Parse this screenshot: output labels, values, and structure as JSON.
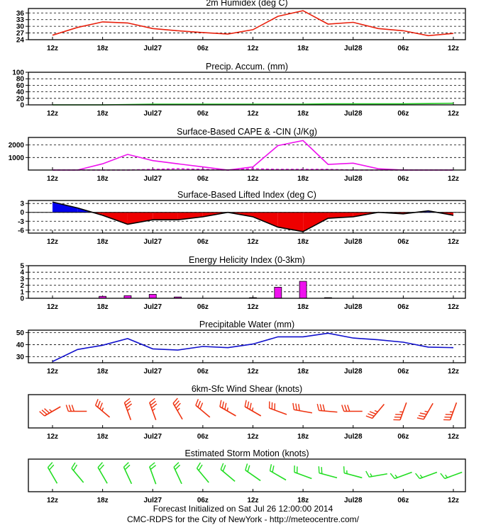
{
  "footer": {
    "line1": "Forecast Initialized on Sat Jul 26 12:00:00 2014",
    "line2": "CMC-RDPS for the City of NewYork - http://meteocentre.com/"
  },
  "x_labels": [
    "12z",
    "18z",
    "Jul27",
    "06z",
    "12z",
    "18z",
    "Jul28",
    "06z",
    "12z"
  ],
  "colors": {
    "humidex": "#e8200c",
    "precip": "#22cc22",
    "cape": "#ee11ee",
    "li_neg": "#ee0000",
    "li_pos": "#0000ee",
    "ehi": "#ee11ee",
    "pw": "#1010cc",
    "shear": "#ee3311",
    "storm": "#22dd22"
  },
  "chart_data": [
    {
      "type": "line",
      "title": "2m Humidex (deg C)",
      "yticks": [
        24,
        27,
        30,
        33,
        36
      ],
      "ylim": [
        24,
        38
      ],
      "values": [
        26,
        29.5,
        32,
        31.5,
        29,
        28,
        27.2,
        26.5,
        28.5,
        34.5,
        37,
        31,
        31.8,
        29,
        28,
        25.8,
        26.8
      ]
    },
    {
      "type": "line",
      "title": "Precip. Accum. (mm)",
      "yticks": [
        0,
        20,
        40,
        60,
        80,
        100
      ],
      "ylim": [
        0,
        100
      ],
      "values": [
        0,
        0,
        0,
        1,
        2,
        2,
        2,
        2,
        2,
        2,
        2,
        3,
        3,
        3,
        3,
        4,
        5
      ]
    },
    {
      "type": "line",
      "title": "Surface-Based CAPE & -CIN (J/Kg)",
      "yticks": [
        1000,
        2000
      ],
      "ylim": [
        0,
        2600
      ],
      "series": [
        {
          "values": [
            0,
            0,
            500,
            1250,
            750,
            500,
            250,
            0,
            250,
            1950,
            2350,
            450,
            550,
            100,
            0,
            0,
            0
          ]
        },
        {
          "values": [
            0,
            0,
            0,
            0,
            50,
            100,
            50,
            0,
            100,
            50,
            50,
            50,
            0,
            0,
            0,
            0,
            0
          ]
        }
      ]
    },
    {
      "type": "area",
      "title": "Surface-Based Lifted Index (deg C)",
      "yticks": [
        -6,
        -3,
        0,
        3
      ],
      "ylim": [
        -7,
        4
      ],
      "values": [
        3.5,
        1.5,
        -1,
        -4,
        -2.5,
        -2.5,
        -1.5,
        0,
        -1.5,
        -5,
        -6.5,
        -2,
        -1.5,
        0,
        -0.5,
        0.5,
        -1
      ]
    },
    {
      "type": "bar",
      "title": "Energy Helicity Index (0-3km)",
      "yticks": [
        0,
        1,
        2,
        3,
        4,
        5
      ],
      "ylim": [
        0,
        5
      ],
      "values": [
        0,
        0,
        0.3,
        0.4,
        0.6,
        0.2,
        0,
        0,
        0.1,
        1.7,
        2.6,
        0.1,
        0,
        0,
        0,
        0,
        0
      ]
    },
    {
      "type": "line",
      "title": "Precipitable Water (mm)",
      "yticks": [
        30,
        40,
        50
      ],
      "ylim": [
        25,
        52
      ],
      "values": [
        26,
        36,
        39.5,
        45,
        36.5,
        35.5,
        38.5,
        37.5,
        40.5,
        46.5,
        46.5,
        49.5,
        45.5,
        44,
        42,
        38,
        37.5
      ]
    },
    {
      "type": "scatter",
      "title": "6km-Sfc Wind Shear    (knots)",
      "barbs": [
        {
          "dir": 240,
          "speed": 35
        },
        {
          "dir": 270,
          "speed": 30
        },
        {
          "dir": 310,
          "speed": 35
        },
        {
          "dir": 340,
          "speed": 35
        },
        {
          "dir": 340,
          "speed": 35
        },
        {
          "dir": 330,
          "speed": 35
        },
        {
          "dir": 310,
          "speed": 30
        },
        {
          "dir": 300,
          "speed": 35
        },
        {
          "dir": 300,
          "speed": 35
        },
        {
          "dir": 290,
          "speed": 30
        },
        {
          "dir": 280,
          "speed": 30
        },
        {
          "dir": 275,
          "speed": 30
        },
        {
          "dir": 270,
          "speed": 30
        },
        {
          "dir": 220,
          "speed": 35
        },
        {
          "dir": 200,
          "speed": 35
        },
        {
          "dir": 210,
          "speed": 35
        },
        {
          "dir": 200,
          "speed": 35
        }
      ]
    },
    {
      "type": "scatter",
      "title": "Estimated Storm Motion   (knots)",
      "barbs": [
        {
          "dir": 330,
          "speed": 20
        },
        {
          "dir": 320,
          "speed": 20
        },
        {
          "dir": 330,
          "speed": 20
        },
        {
          "dir": 335,
          "speed": 20
        },
        {
          "dir": 340,
          "speed": 20
        },
        {
          "dir": 335,
          "speed": 20
        },
        {
          "dir": 320,
          "speed": 20
        },
        {
          "dir": 310,
          "speed": 20
        },
        {
          "dir": 305,
          "speed": 20
        },
        {
          "dir": 300,
          "speed": 20
        },
        {
          "dir": 290,
          "speed": 20
        },
        {
          "dir": 285,
          "speed": 20
        },
        {
          "dir": 285,
          "speed": 15
        },
        {
          "dir": 260,
          "speed": 15
        },
        {
          "dir": 250,
          "speed": 15
        },
        {
          "dir": 250,
          "speed": 15
        },
        {
          "dir": 250,
          "speed": 15
        }
      ]
    }
  ]
}
